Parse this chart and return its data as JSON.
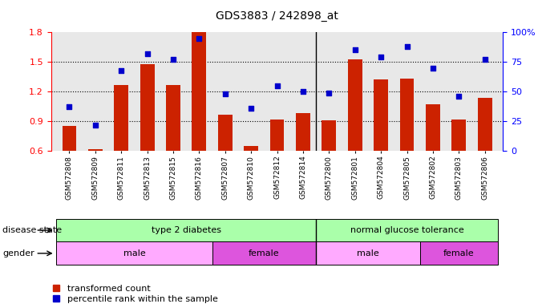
{
  "title": "GDS3883 / 242898_at",
  "samples": [
    "GSM572808",
    "GSM572809",
    "GSM572811",
    "GSM572813",
    "GSM572815",
    "GSM572816",
    "GSM572807",
    "GSM572810",
    "GSM572812",
    "GSM572814",
    "GSM572800",
    "GSM572801",
    "GSM572804",
    "GSM572805",
    "GSM572802",
    "GSM572803",
    "GSM572806"
  ],
  "bar_values": [
    0.85,
    0.62,
    1.27,
    1.48,
    1.27,
    1.8,
    0.97,
    0.65,
    0.92,
    0.98,
    0.91,
    1.53,
    1.32,
    1.33,
    1.07,
    0.92,
    1.14
  ],
  "dot_values": [
    37,
    22,
    68,
    82,
    77,
    95,
    48,
    36,
    55,
    50,
    49,
    85,
    79,
    88,
    70,
    46,
    77
  ],
  "bar_color": "#cc2200",
  "dot_color": "#0000cc",
  "ylim_left": [
    0.6,
    1.8
  ],
  "ylim_right": [
    0,
    100
  ],
  "yticks_left": [
    0.6,
    0.9,
    1.2,
    1.5,
    1.8
  ],
  "yticks_right": [
    0,
    25,
    50,
    75,
    100
  ],
  "yticklabels_right": [
    "0",
    "25",
    "50",
    "75",
    "100%"
  ],
  "disease_separator": 10,
  "legend_bar_label": "transformed count",
  "legend_dot_label": "percentile rank within the sample",
  "xlabel_disease": "disease state",
  "xlabel_gender": "gender",
  "bg_color": "#ffffff",
  "chart_bg": "#e8e8e8",
  "disease_color": "#aaffaa",
  "gender_male_color": "#ffaaff",
  "gender_female_color": "#dd55dd",
  "groups_disease": [
    {
      "label": "type 2 diabetes",
      "start": 0,
      "end": 10
    },
    {
      "label": "normal glucose tolerance",
      "start": 10,
      "end": 17
    }
  ],
  "groups_gender": [
    {
      "label": "male",
      "start": 0,
      "end": 6
    },
    {
      "label": "female",
      "start": 6,
      "end": 10
    },
    {
      "label": "male",
      "start": 10,
      "end": 14
    },
    {
      "label": "female",
      "start": 14,
      "end": 17
    }
  ]
}
